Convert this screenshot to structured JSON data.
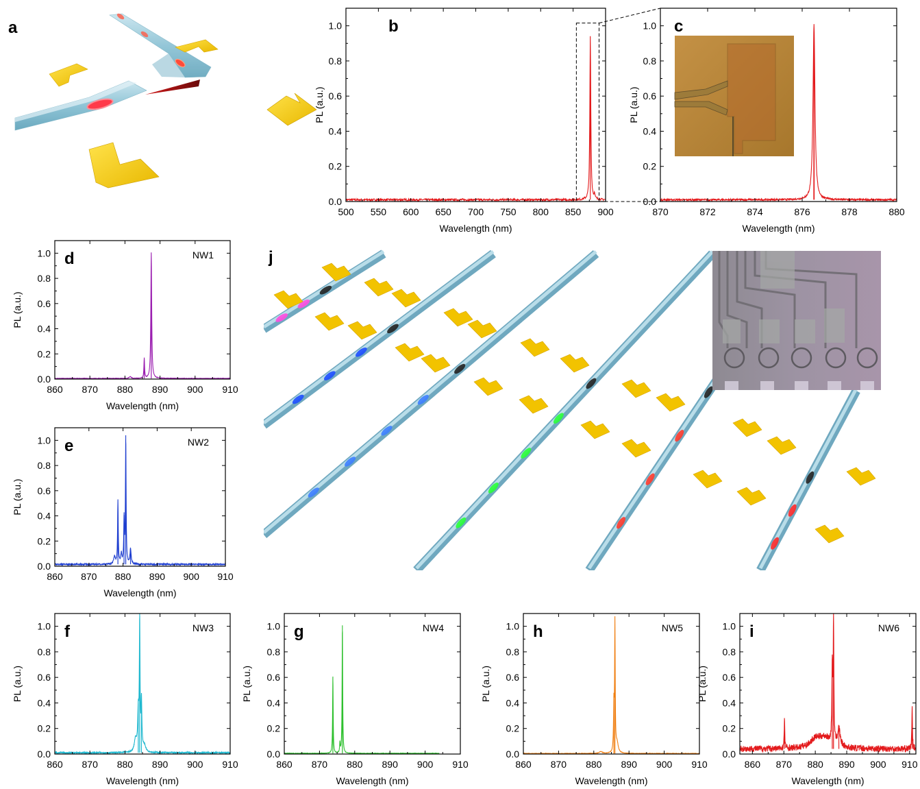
{
  "figure": {
    "panel_letters": {
      "a": "a",
      "b": "b",
      "c": "c",
      "d": "d",
      "e": "e",
      "f": "f",
      "g": "g",
      "h": "h",
      "i": "i",
      "j": "j"
    }
  },
  "chart_data": [
    {
      "id": "b",
      "type": "line",
      "label": "b",
      "annotation": "",
      "xlabel": "Wavelength (nm)",
      "ylabel": "PL (a.u.)",
      "xlim": [
        500,
        900
      ],
      "ylim": [
        0,
        1.1
      ],
      "xticks": [
        500,
        550,
        600,
        650,
        700,
        750,
        800,
        850,
        900
      ],
      "xticklabels": [
        "500",
        "550",
        "600",
        "650",
        "700",
        "750",
        "800",
        "850",
        "900"
      ],
      "yticks": [
        0,
        0.2,
        0.4,
        0.6,
        0.8,
        1.0
      ],
      "yticklabels": [
        "0.0",
        "0.2",
        "0.4",
        "0.6",
        "0.8",
        "1.0"
      ],
      "color": "#e31a1c",
      "baseline": 0.01,
      "noise": 0.006,
      "peaks": [
        {
          "x": 876.5,
          "h": 0.93,
          "w": 0.9
        },
        {
          "x": 883,
          "h": 0.03,
          "w": 0.8
        }
      ],
      "inset_box": {
        "x": [
          855,
          890
        ],
        "y": [
          0,
          1.0
        ]
      }
    },
    {
      "id": "c",
      "type": "line",
      "label": "c",
      "annotation": "",
      "xlabel": "Wavelength (nm)",
      "ylabel": "PL (a.u.)",
      "xlim": [
        870,
        880
      ],
      "ylim": [
        0,
        1.1
      ],
      "xticks": [
        870,
        872,
        874,
        876,
        878,
        880
      ],
      "xticklabels": [
        "870",
        "872",
        "874",
        "876",
        "878",
        "880"
      ],
      "yticks": [
        0,
        0.2,
        0.4,
        0.6,
        0.8,
        1.0
      ],
      "yticklabels": [
        "0.0",
        "0.2",
        "0.4",
        "0.6",
        "0.8",
        "1.0"
      ],
      "color": "#e31a1c",
      "baseline": 0.01,
      "noise": 0.005,
      "peaks": [
        {
          "x": 876.5,
          "h": 1.0,
          "w": 0.05
        }
      ]
    },
    {
      "id": "d",
      "type": "line",
      "label": "d",
      "annotation": "NW1",
      "xlabel": "Wavelength (nm)",
      "ylabel": "PL (a.u.)",
      "xlim": [
        860,
        910
      ],
      "ylim": [
        0,
        1.1
      ],
      "xticks": [
        860,
        870,
        880,
        890,
        900,
        910
      ],
      "xticklabels": [
        "860",
        "870",
        "880",
        "890",
        "900",
        "910"
      ],
      "yticks": [
        0,
        0.2,
        0.4,
        0.6,
        0.8,
        1.0
      ],
      "yticklabels": [
        "0.0",
        "0.2",
        "0.4",
        "0.6",
        "0.8",
        "1.0"
      ],
      "color": "#9b1fb0",
      "baseline": 0.005,
      "noise": 0.002,
      "peaks": [
        {
          "x": 887.5,
          "h": 1.0,
          "w": 0.15
        },
        {
          "x": 885.5,
          "h": 0.16,
          "w": 0.12
        },
        {
          "x": 881.5,
          "h": 0.015,
          "w": 0.3
        }
      ]
    },
    {
      "id": "e",
      "type": "line",
      "label": "e",
      "annotation": "NW2",
      "xlabel": "Wavelength (nm)",
      "ylabel": "PL (a.u.)",
      "xlim": [
        860,
        910
      ],
      "ylim": [
        0,
        1.1
      ],
      "xticks": [
        860,
        870,
        880,
        890,
        900,
        910
      ],
      "xticklabels": [
        "860",
        "870",
        "880",
        "890",
        "900",
        "910"
      ],
      "yticks": [
        0,
        0.2,
        0.4,
        0.6,
        0.8,
        1.0
      ],
      "yticklabels": [
        "0.0",
        "0.2",
        "0.4",
        "0.6",
        "0.8",
        "1.0"
      ],
      "color": "#1f3fd0",
      "baseline": 0.015,
      "noise": 0.006,
      "peaks": [
        {
          "x": 880.8,
          "h": 1.0,
          "w": 0.12
        },
        {
          "x": 878.5,
          "h": 0.5,
          "w": 0.12
        },
        {
          "x": 880.3,
          "h": 0.35,
          "w": 0.12
        },
        {
          "x": 882.2,
          "h": 0.12,
          "w": 0.2
        },
        {
          "x": 877.5,
          "h": 0.06,
          "w": 0.3
        },
        {
          "x": 879.5,
          "h": 0.08,
          "w": 0.2
        }
      ]
    },
    {
      "id": "f",
      "type": "line",
      "label": "f",
      "annotation": "NW3",
      "xlabel": "Wavelength (nm)",
      "ylabel": "PL (a.u.)",
      "xlim": [
        860,
        910
      ],
      "ylim": [
        0,
        1.1
      ],
      "xticks": [
        860,
        870,
        880,
        890,
        900,
        910
      ],
      "xticklabels": [
        "860",
        "870",
        "880",
        "890",
        "900",
        "910"
      ],
      "yticks": [
        0,
        0.2,
        0.4,
        0.6,
        0.8,
        1.0
      ],
      "yticklabels": [
        "0.0",
        "0.2",
        "0.4",
        "0.6",
        "0.8",
        "1.0"
      ],
      "color": "#1fb8cf",
      "baseline": 0.01,
      "noise": 0.006,
      "peaks": [
        {
          "x": 884.2,
          "h": 1.0,
          "w": 0.12
        },
        {
          "x": 883.8,
          "h": 0.3,
          "w": 0.2
        },
        {
          "x": 884.7,
          "h": 0.38,
          "w": 0.15
        },
        {
          "x": 883,
          "h": 0.1,
          "w": 0.4
        },
        {
          "x": 885.5,
          "h": 0.05,
          "w": 0.5
        }
      ]
    },
    {
      "id": "g",
      "type": "line",
      "label": "g",
      "annotation": "NW4",
      "xlabel": "Wavelength (nm)",
      "ylabel": "PL (a.u.)",
      "xlim": [
        860,
        910
      ],
      "ylim": [
        0,
        1.1
      ],
      "xticks": [
        860,
        870,
        880,
        890,
        900,
        910
      ],
      "xticklabels": [
        "860",
        "870",
        "880",
        "890",
        "900",
        "910"
      ],
      "yticks": [
        0,
        0.2,
        0.4,
        0.6,
        0.8,
        1.0
      ],
      "yticklabels": [
        "0.0",
        "0.2",
        "0.4",
        "0.6",
        "0.8",
        "1.0"
      ],
      "color": "#2fc02f",
      "baseline": 0.005,
      "noise": 0.002,
      "xmax_data": 904,
      "peaks": [
        {
          "x": 876.5,
          "h": 1.0,
          "w": 0.1
        },
        {
          "x": 873.8,
          "h": 0.6,
          "w": 0.1
        },
        {
          "x": 875.8,
          "h": 0.08,
          "w": 0.1
        }
      ]
    },
    {
      "id": "h",
      "type": "line",
      "label": "h",
      "annotation": "NW5",
      "xlabel": "Wavelength (nm)",
      "ylabel": "PL (a.u.)",
      "xlim": [
        860,
        910
      ],
      "ylim": [
        0,
        1.1
      ],
      "xticks": [
        860,
        870,
        880,
        890,
        900,
        910
      ],
      "xticklabels": [
        "860",
        "870",
        "880",
        "890",
        "900",
        "910"
      ],
      "yticks": [
        0,
        0.2,
        0.4,
        0.6,
        0.8,
        1.0
      ],
      "yticklabels": [
        "0.0",
        "0.2",
        "0.4",
        "0.6",
        "0.8",
        "1.0"
      ],
      "color": "#f07f12",
      "baseline": 0.004,
      "noise": 0.002,
      "peaks": [
        {
          "x": 886.0,
          "h": 1.0,
          "w": 0.1
        },
        {
          "x": 885.7,
          "h": 0.36,
          "w": 0.12
        },
        {
          "x": 886.6,
          "h": 0.08,
          "w": 0.4
        },
        {
          "x": 882,
          "h": 0.015,
          "w": 0.5
        }
      ]
    },
    {
      "id": "i",
      "type": "line",
      "label": "i",
      "annotation": "NW6",
      "xlabel": "Wavelength (nm)",
      "ylabel": "PL (a.u.)",
      "xlim": [
        856,
        912
      ],
      "ylim": [
        0,
        1.1
      ],
      "xticks": [
        860,
        870,
        880,
        890,
        900,
        910
      ],
      "xticklabels": [
        "860",
        "870",
        "880",
        "890",
        "900",
        "910"
      ],
      "yticks": [
        0,
        0.2,
        0.4,
        0.6,
        0.8,
        1.0
      ],
      "yticklabels": [
        "0.0",
        "0.2",
        "0.4",
        "0.6",
        "0.8",
        "1.0"
      ],
      "color": "#e31a1c",
      "baseline": 0.04,
      "noise": 0.025,
      "peaks": [
        {
          "x": 885.8,
          "h": 1.0,
          "w": 0.12
        },
        {
          "x": 885.4,
          "h": 0.6,
          "w": 0.15
        },
        {
          "x": 870.2,
          "h": 0.22,
          "w": 0.12
        },
        {
          "x": 910.8,
          "h": 0.32,
          "w": 0.12
        },
        {
          "x": 883,
          "h": 0.08,
          "w": 2.5
        },
        {
          "x": 887.5,
          "h": 0.14,
          "w": 0.5
        },
        {
          "x": 880,
          "h": 0.06,
          "w": 2
        }
      ]
    }
  ]
}
